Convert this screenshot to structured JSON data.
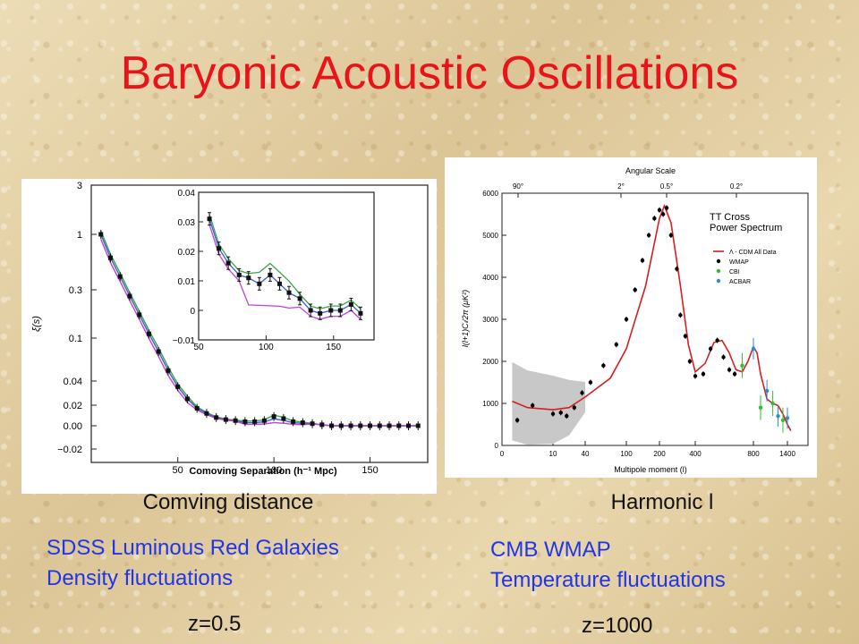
{
  "slide": {
    "title": "Baryonic Acoustic Oscillations",
    "left_caption": "Comving distance",
    "right_caption": "Harmonic l",
    "left_desc_line1": "SDSS Luminous Red Galaxies",
    "left_desc_line2": "Density fluctuations",
    "right_desc_line1": "CMB WMAP",
    "right_desc_line2": "Temperature fluctuations",
    "left_z": "z=0.5",
    "right_z": "z=1000",
    "title_color": "#e8141a",
    "desc_color": "#1f35e8"
  },
  "chart_data": [
    {
      "type": "line",
      "xlabel": "Comoving Separation (h⁻¹ Mpc)",
      "ylabel": "ξ(s)",
      "xlim": [
        5,
        180
      ],
      "y_ticks": [
        "3",
        "1",
        "0.3",
        "0.1",
        "0.04",
        "0.02",
        "0.00",
        "−0.02"
      ],
      "x_ticks": [
        "50",
        "100",
        "150"
      ],
      "data_points": {
        "x": [
          10,
          15,
          20,
          25,
          30,
          35,
          40,
          45,
          50,
          55,
          60,
          65,
          70,
          75,
          80,
          85,
          90,
          95,
          100,
          105,
          110,
          115,
          120,
          125,
          130,
          135,
          140,
          145,
          150,
          155,
          160,
          165,
          170,
          175
        ],
        "y": [
          1.0,
          0.6,
          0.4,
          0.26,
          0.17,
          0.11,
          0.075,
          0.05,
          0.034,
          0.024,
          0.017,
          0.012,
          0.008,
          0.006,
          0.005,
          0.004,
          0.004,
          0.005,
          0.009,
          0.007,
          0.004,
          0.003,
          0.002,
          0.001,
          0.0,
          0.0,
          0.0,
          0.0,
          0.0,
          0.0,
          0.0,
          0.0,
          0.0,
          0.0
        ]
      },
      "inset": {
        "xlim": [
          50,
          180
        ],
        "ylim": [
          -0.01,
          0.04
        ],
        "x_ticks": [
          "50",
          "100",
          "150"
        ],
        "y_ticks": [
          "0.04",
          "0.03",
          "0.02",
          "0.01",
          "0",
          "−0.01"
        ],
        "x": [
          58,
          65,
          72,
          80,
          87,
          95,
          103,
          110,
          117,
          125,
          133,
          140,
          148,
          155,
          163,
          170
        ],
        "y": [
          0.031,
          0.021,
          0.016,
          0.012,
          0.011,
          0.009,
          0.012,
          0.009,
          0.006,
          0.004,
          0.0,
          -0.001,
          0.0,
          0.0,
          0.002,
          -0.001
        ]
      },
      "series": [
        {
          "color": "#3aa84a"
        },
        {
          "color": "#3f5fcf"
        },
        {
          "color": "#c040d8"
        }
      ]
    },
    {
      "type": "scatter",
      "title": "TT Cross Power Spectrum",
      "top_axis_label": "Angular Scale",
      "top_ticks": [
        "90°",
        "2°",
        "0.5°",
        "0.2°"
      ],
      "xlabel": "Multipole moment (l)",
      "ylabel": "l(l+1)Cₗ/2π (μK²)",
      "x_ticks": [
        "0",
        "10",
        "40",
        "100",
        "200",
        "400",
        "800",
        "1400"
      ],
      "ylim": [
        0,
        6000
      ],
      "y_ticks": [
        "0",
        "1000",
        "2000",
        "3000",
        "4000",
        "5000",
        "6000"
      ],
      "legend": [
        "Λ - CDM All Data",
        "WMAP",
        "CBI",
        "ACBAR"
      ],
      "model_curve": {
        "l": [
          2,
          5,
          10,
          20,
          40,
          70,
          100,
          150,
          200,
          220,
          250,
          300,
          350,
          400,
          450,
          500,
          550,
          600,
          650,
          700,
          750,
          800,
          850,
          900,
          1000,
          1100,
          1200,
          1300,
          1400,
          1500
        ],
        "value": [
          1050,
          900,
          850,
          900,
          1150,
          1600,
          2300,
          3800,
          5400,
          5700,
          5300,
          3800,
          2400,
          1750,
          1950,
          2450,
          2500,
          2200,
          1800,
          1750,
          2000,
          2350,
          2200,
          1700,
          1100,
          1000,
          950,
          750,
          500,
          350
        ]
      },
      "wmap": {
        "l": [
          3,
          6,
          10,
          14,
          18,
          25,
          35,
          45,
          60,
          80,
          100,
          120,
          140,
          160,
          180,
          200,
          215,
          230,
          250,
          280,
          300,
          330,
          360,
          400,
          440,
          480,
          520,
          560,
          600,
          640
        ],
        "value": [
          600,
          950,
          750,
          780,
          700,
          900,
          1250,
          1500,
          1900,
          2400,
          3000,
          3700,
          4400,
          5000,
          5400,
          5600,
          5500,
          5650,
          5000,
          4200,
          3100,
          2600,
          2000,
          1650,
          1700,
          2300,
          2500,
          2100,
          1800,
          1700
        ]
      },
      "cbi": {
        "l": [
          700,
          900,
          1100,
          1300
        ],
        "value": [
          1900,
          900,
          1000,
          600
        ]
      },
      "acbar": {
        "l": [
          800,
          1000,
          1200,
          1400
        ],
        "value": [
          2300,
          1300,
          700,
          650
        ]
      },
      "colors": {
        "model": "#d42020",
        "wmap": "#000000",
        "cbi": "#2ec02e",
        "acbar": "#2c8be0",
        "band": "#c8c8c8"
      }
    }
  ]
}
